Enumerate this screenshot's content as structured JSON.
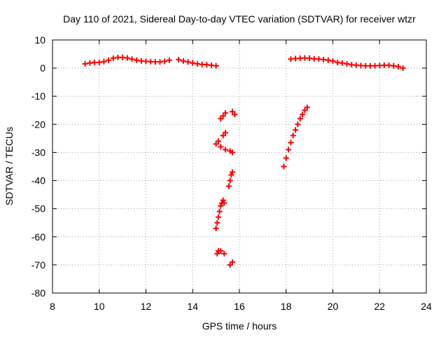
{
  "chart_data": {
    "type": "scatter",
    "title": "Day 110 of 2021, Sidereal Day-to-day VTEC variation (SDTVAR) for receiver wtzr",
    "xlabel": "GPS time / hours",
    "ylabel": "SDTVAR / TECUs",
    "xlim": [
      8,
      24
    ],
    "ylim": [
      -80,
      10
    ],
    "xticks": [
      8,
      10,
      12,
      14,
      16,
      18,
      20,
      22,
      24
    ],
    "yticks": [
      10,
      0,
      -10,
      -20,
      -30,
      -40,
      -50,
      -60,
      -70,
      -80
    ],
    "xtick_labels": [
      "8",
      "10",
      "12",
      "14",
      "16",
      "18",
      "20",
      "22",
      "24"
    ],
    "ytick_labels": [
      "10",
      "0",
      "-10",
      "-20",
      "-30",
      "-40",
      "-50",
      "-60",
      "-70",
      "-80"
    ],
    "grid": true,
    "marker": "plus",
    "series_color": "#ff0000",
    "series": [
      {
        "x": [
          9.4,
          9.6,
          9.8,
          10.0,
          10.2,
          10.4,
          10.6,
          10.8,
          11.0,
          11.2,
          11.4,
          11.6,
          11.8,
          12.0,
          12.2,
          12.4,
          12.6,
          12.8,
          13.0,
          13.4,
          13.6,
          13.8,
          14.0,
          14.2,
          14.4,
          14.6,
          14.8,
          15.0,
          15.2,
          15.3,
          15.4,
          15.7,
          15.8,
          15.0,
          15.1,
          15.3,
          15.4,
          15.2,
          15.4,
          15.6,
          15.7,
          15.55,
          15.6,
          15.65,
          15.7,
          15.0,
          15.05,
          15.1,
          15.15,
          15.2,
          15.25,
          15.3,
          15.35,
          15.05,
          15.1,
          15.2,
          15.35,
          15.6,
          15.7,
          17.9,
          18.0,
          18.1,
          18.2,
          18.3,
          18.4,
          18.5,
          18.6,
          18.7,
          18.8,
          18.9,
          18.2,
          18.4,
          18.6,
          18.8,
          19.0,
          19.2,
          19.4,
          19.6,
          19.8,
          20.0,
          20.2,
          20.4,
          20.6,
          20.8,
          21.0,
          21.2,
          21.4,
          21.6,
          21.8,
          22.0,
          22.2,
          22.4,
          22.6,
          22.8,
          23.0
        ],
        "y": [
          1.5,
          1.8,
          2.0,
          2.0,
          2.3,
          2.8,
          3.5,
          3.8,
          3.8,
          3.6,
          3.2,
          2.8,
          2.5,
          2.4,
          2.3,
          2.2,
          2.2,
          2.4,
          2.8,
          3.0,
          2.5,
          2.2,
          1.8,
          1.5,
          1.3,
          1.2,
          1.0,
          0.8,
          -18.0,
          -17.0,
          -16.0,
          -15.5,
          -16.5,
          -27.0,
          -26.0,
          -24.0,
          -23.0,
          -28.0,
          -29.0,
          -29.5,
          -30.0,
          -42.0,
          -40.0,
          -38.0,
          -37.0,
          -57.0,
          -55.0,
          -53.0,
          -51.0,
          -49.0,
          -48.0,
          -47.0,
          -48.0,
          -66.0,
          -65.0,
          -65.0,
          -66.0,
          -70.0,
          -69.0,
          -35.0,
          -32.0,
          -29.0,
          -26.5,
          -24.0,
          -22.0,
          -20.0,
          -18.0,
          -16.5,
          -15.0,
          -14.0,
          3.2,
          3.4,
          3.5,
          3.6,
          3.5,
          3.3,
          3.2,
          3.0,
          2.8,
          2.5,
          2.0,
          1.8,
          1.5,
          1.2,
          1.0,
          0.9,
          0.8,
          0.8,
          0.8,
          0.9,
          1.0,
          1.0,
          0.8,
          0.5,
          0.0
        ]
      }
    ]
  }
}
